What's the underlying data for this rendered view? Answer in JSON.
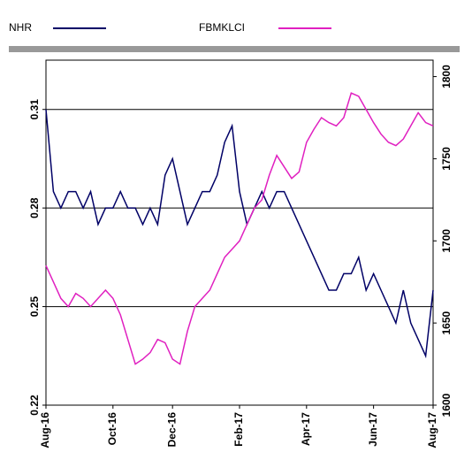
{
  "chart_data": {
    "type": "line",
    "categories": [
      "Aug-16",
      null,
      null,
      null,
      null,
      null,
      null,
      null,
      null,
      "Oct-16",
      null,
      null,
      null,
      null,
      null,
      null,
      null,
      "Dec-16",
      null,
      null,
      null,
      null,
      null,
      null,
      null,
      null,
      "Feb-17",
      null,
      null,
      null,
      null,
      null,
      null,
      null,
      null,
      "Apr-17",
      null,
      null,
      null,
      null,
      null,
      null,
      null,
      null,
      "Jun-17",
      null,
      null,
      null,
      null,
      null,
      null,
      null,
      "Aug-17"
    ],
    "series": [
      {
        "name": "NHR",
        "color": "#000066",
        "axis": "y",
        "values": [
          0.31,
          0.285,
          0.28,
          0.285,
          0.285,
          0.28,
          0.285,
          0.275,
          0.28,
          0.28,
          0.285,
          0.28,
          0.28,
          0.275,
          0.28,
          0.275,
          0.29,
          0.295,
          0.285,
          0.275,
          0.28,
          0.285,
          0.285,
          0.29,
          0.3,
          0.305,
          0.285,
          0.275,
          0.28,
          0.285,
          0.28,
          0.285,
          0.285,
          0.28,
          0.275,
          0.27,
          0.265,
          0.26,
          0.255,
          0.255,
          0.26,
          0.26,
          0.265,
          0.255,
          0.26,
          0.255,
          0.25,
          0.245,
          0.255,
          0.245,
          0.24,
          0.235,
          0.255
        ]
      },
      {
        "name": "FBMKLCI",
        "color": "#e020c0",
        "axis": "y2",
        "values": [
          1685,
          1675,
          1665,
          1660,
          1668,
          1665,
          1660,
          1665,
          1670,
          1665,
          1655,
          1640,
          1625,
          1628,
          1632,
          1640,
          1638,
          1628,
          1625,
          1645,
          1660,
          1665,
          1670,
          1680,
          1690,
          1695,
          1700,
          1710,
          1720,
          1725,
          1740,
          1752,
          1745,
          1738,
          1742,
          1760,
          1768,
          1775,
          1772,
          1770,
          1775,
          1790,
          1788,
          1780,
          1772,
          1765,
          1760,
          1758,
          1762,
          1770,
          1778,
          1772,
          1770
        ]
      }
    ],
    "ylim": [
      0.22,
      0.325
    ],
    "yticks": [
      0.22,
      0.25,
      0.28,
      0.31
    ],
    "y2lim": [
      1600,
      1810
    ],
    "y2ticks": [
      1600,
      1650,
      1700,
      1750,
      1800
    ],
    "grid": true
  }
}
